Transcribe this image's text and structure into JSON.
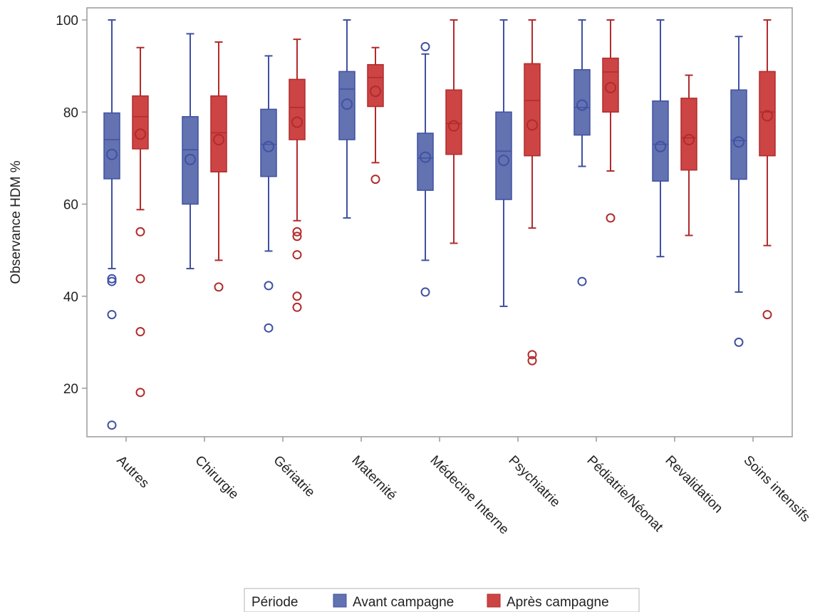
{
  "chart_data": {
    "type": "boxplot",
    "ylabel": "Observance HDM %",
    "ylim": [
      9,
      100
    ],
    "yticks": [
      20,
      40,
      60,
      80,
      100
    ],
    "categories": [
      "Autres",
      "Chirurgie",
      "Gériatrie",
      "Maternité",
      "Médecine Interne",
      "Psychiatrie",
      "Pédiatrie/Néonat",
      "Revalidation",
      "Soins intensifs"
    ],
    "legend": {
      "title": "Période",
      "position": "bottom-center"
    },
    "series": [
      {
        "name": "Avant campagne",
        "color": "#6372b0",
        "stroke": "#3f51a3",
        "boxes": [
          {
            "min": 46,
            "q1": 65.5,
            "median": 74,
            "q3": 79.8,
            "max": 100,
            "mean": 70.8,
            "outliers": [
              43.8,
              43.2,
              36,
              12
            ]
          },
          {
            "min": 46,
            "q1": 60,
            "median": 71.8,
            "q3": 79,
            "max": 97,
            "mean": 69.7,
            "outliers": []
          },
          {
            "min": 49.8,
            "q1": 66,
            "median": 73,
            "q3": 80.6,
            "max": 92.2,
            "mean": 72.5,
            "outliers": [
              42.3,
              33.1
            ]
          },
          {
            "min": 57,
            "q1": 74,
            "median": 85,
            "q3": 88.8,
            "max": 100,
            "mean": 81.7,
            "outliers": []
          },
          {
            "min": 47.8,
            "q1": 63,
            "median": 70,
            "q3": 75.4,
            "max": 92.6,
            "mean": 70.2,
            "outliers": [
              94.2,
              40.9
            ]
          },
          {
            "min": 37.8,
            "q1": 61,
            "median": 71.5,
            "q3": 80,
            "max": 100,
            "mean": 69.5,
            "outliers": []
          },
          {
            "min": 68.2,
            "q1": 75,
            "median": 81,
            "q3": 89.2,
            "max": 100,
            "mean": 81.5,
            "outliers": [
              43.2
            ]
          },
          {
            "min": 48.6,
            "q1": 65,
            "median": 73,
            "q3": 82.4,
            "max": 100,
            "mean": 72.5,
            "outliers": []
          },
          {
            "min": 40.9,
            "q1": 65.4,
            "median": 73.8,
            "q3": 84.8,
            "max": 96.4,
            "mean": 73.5,
            "outliers": [
              30
            ]
          }
        ]
      },
      {
        "name": "Après campagne",
        "color": "#cc4444",
        "stroke": "#b22b2b",
        "boxes": [
          {
            "min": 58.8,
            "q1": 72,
            "median": 79,
            "q3": 83.5,
            "max": 94,
            "mean": 75.2,
            "outliers": [
              54,
              43.8,
              32.3,
              19.1
            ]
          },
          {
            "min": 47.8,
            "q1": 67,
            "median": 75.5,
            "q3": 83.5,
            "max": 95.2,
            "mean": 74,
            "outliers": [
              42
            ]
          },
          {
            "min": 56.4,
            "q1": 74,
            "median": 81,
            "q3": 87.1,
            "max": 95.8,
            "mean": 77.8,
            "outliers": [
              54,
              53,
              49,
              40,
              37.6
            ]
          },
          {
            "min": 69,
            "q1": 81.2,
            "median": 87.5,
            "q3": 90.3,
            "max": 94,
            "mean": 84.5,
            "outliers": [
              65.4
            ]
          },
          {
            "min": 51.5,
            "q1": 70.8,
            "median": 77.5,
            "q3": 84.8,
            "max": 100,
            "mean": 77,
            "outliers": []
          },
          {
            "min": 54.8,
            "q1": 70.5,
            "median": 82.5,
            "q3": 90.5,
            "max": 100,
            "mean": 77.2,
            "outliers": [
              27.3,
              26
            ]
          },
          {
            "min": 67.2,
            "q1": 80,
            "median": 88.7,
            "q3": 91.7,
            "max": 100,
            "mean": 85.3,
            "outliers": [
              57
            ]
          },
          {
            "min": 53.2,
            "q1": 67.4,
            "median": 74.4,
            "q3": 83,
            "max": 88,
            "mean": 74,
            "outliers": []
          },
          {
            "min": 51,
            "q1": 70.5,
            "median": 80,
            "q3": 88.8,
            "max": 100,
            "mean": 79.2,
            "outliers": [
              36
            ]
          }
        ]
      }
    ]
  }
}
